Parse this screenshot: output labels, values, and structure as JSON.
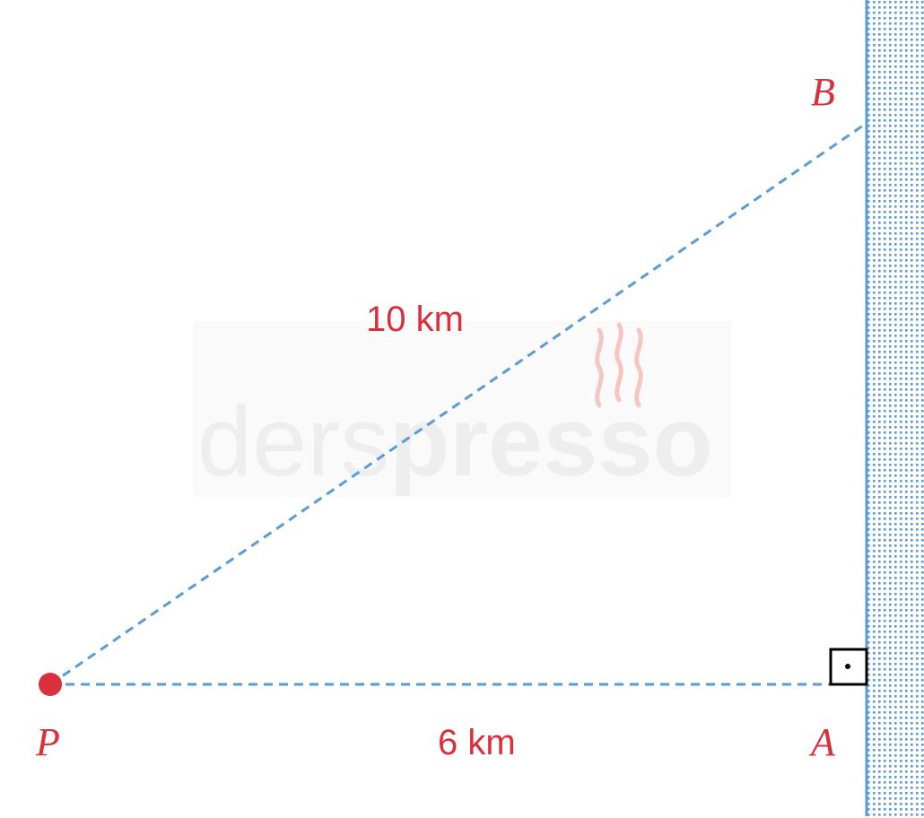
{
  "diagram": {
    "points": {
      "P": "P",
      "A": "A",
      "B": "B"
    },
    "segments": {
      "PB_length": "10 km",
      "PA_length": "6 km"
    },
    "right_angle_at": "A",
    "watermark": {
      "light": "ders",
      "bold": "presso"
    }
  },
  "colors": {
    "accent_red": "#d9303c",
    "line_blue": "#5b9bd5",
    "marker_black": "#000000",
    "watermark_gray": "#eeeeee",
    "watermark_steam": "#f5c6bd"
  }
}
